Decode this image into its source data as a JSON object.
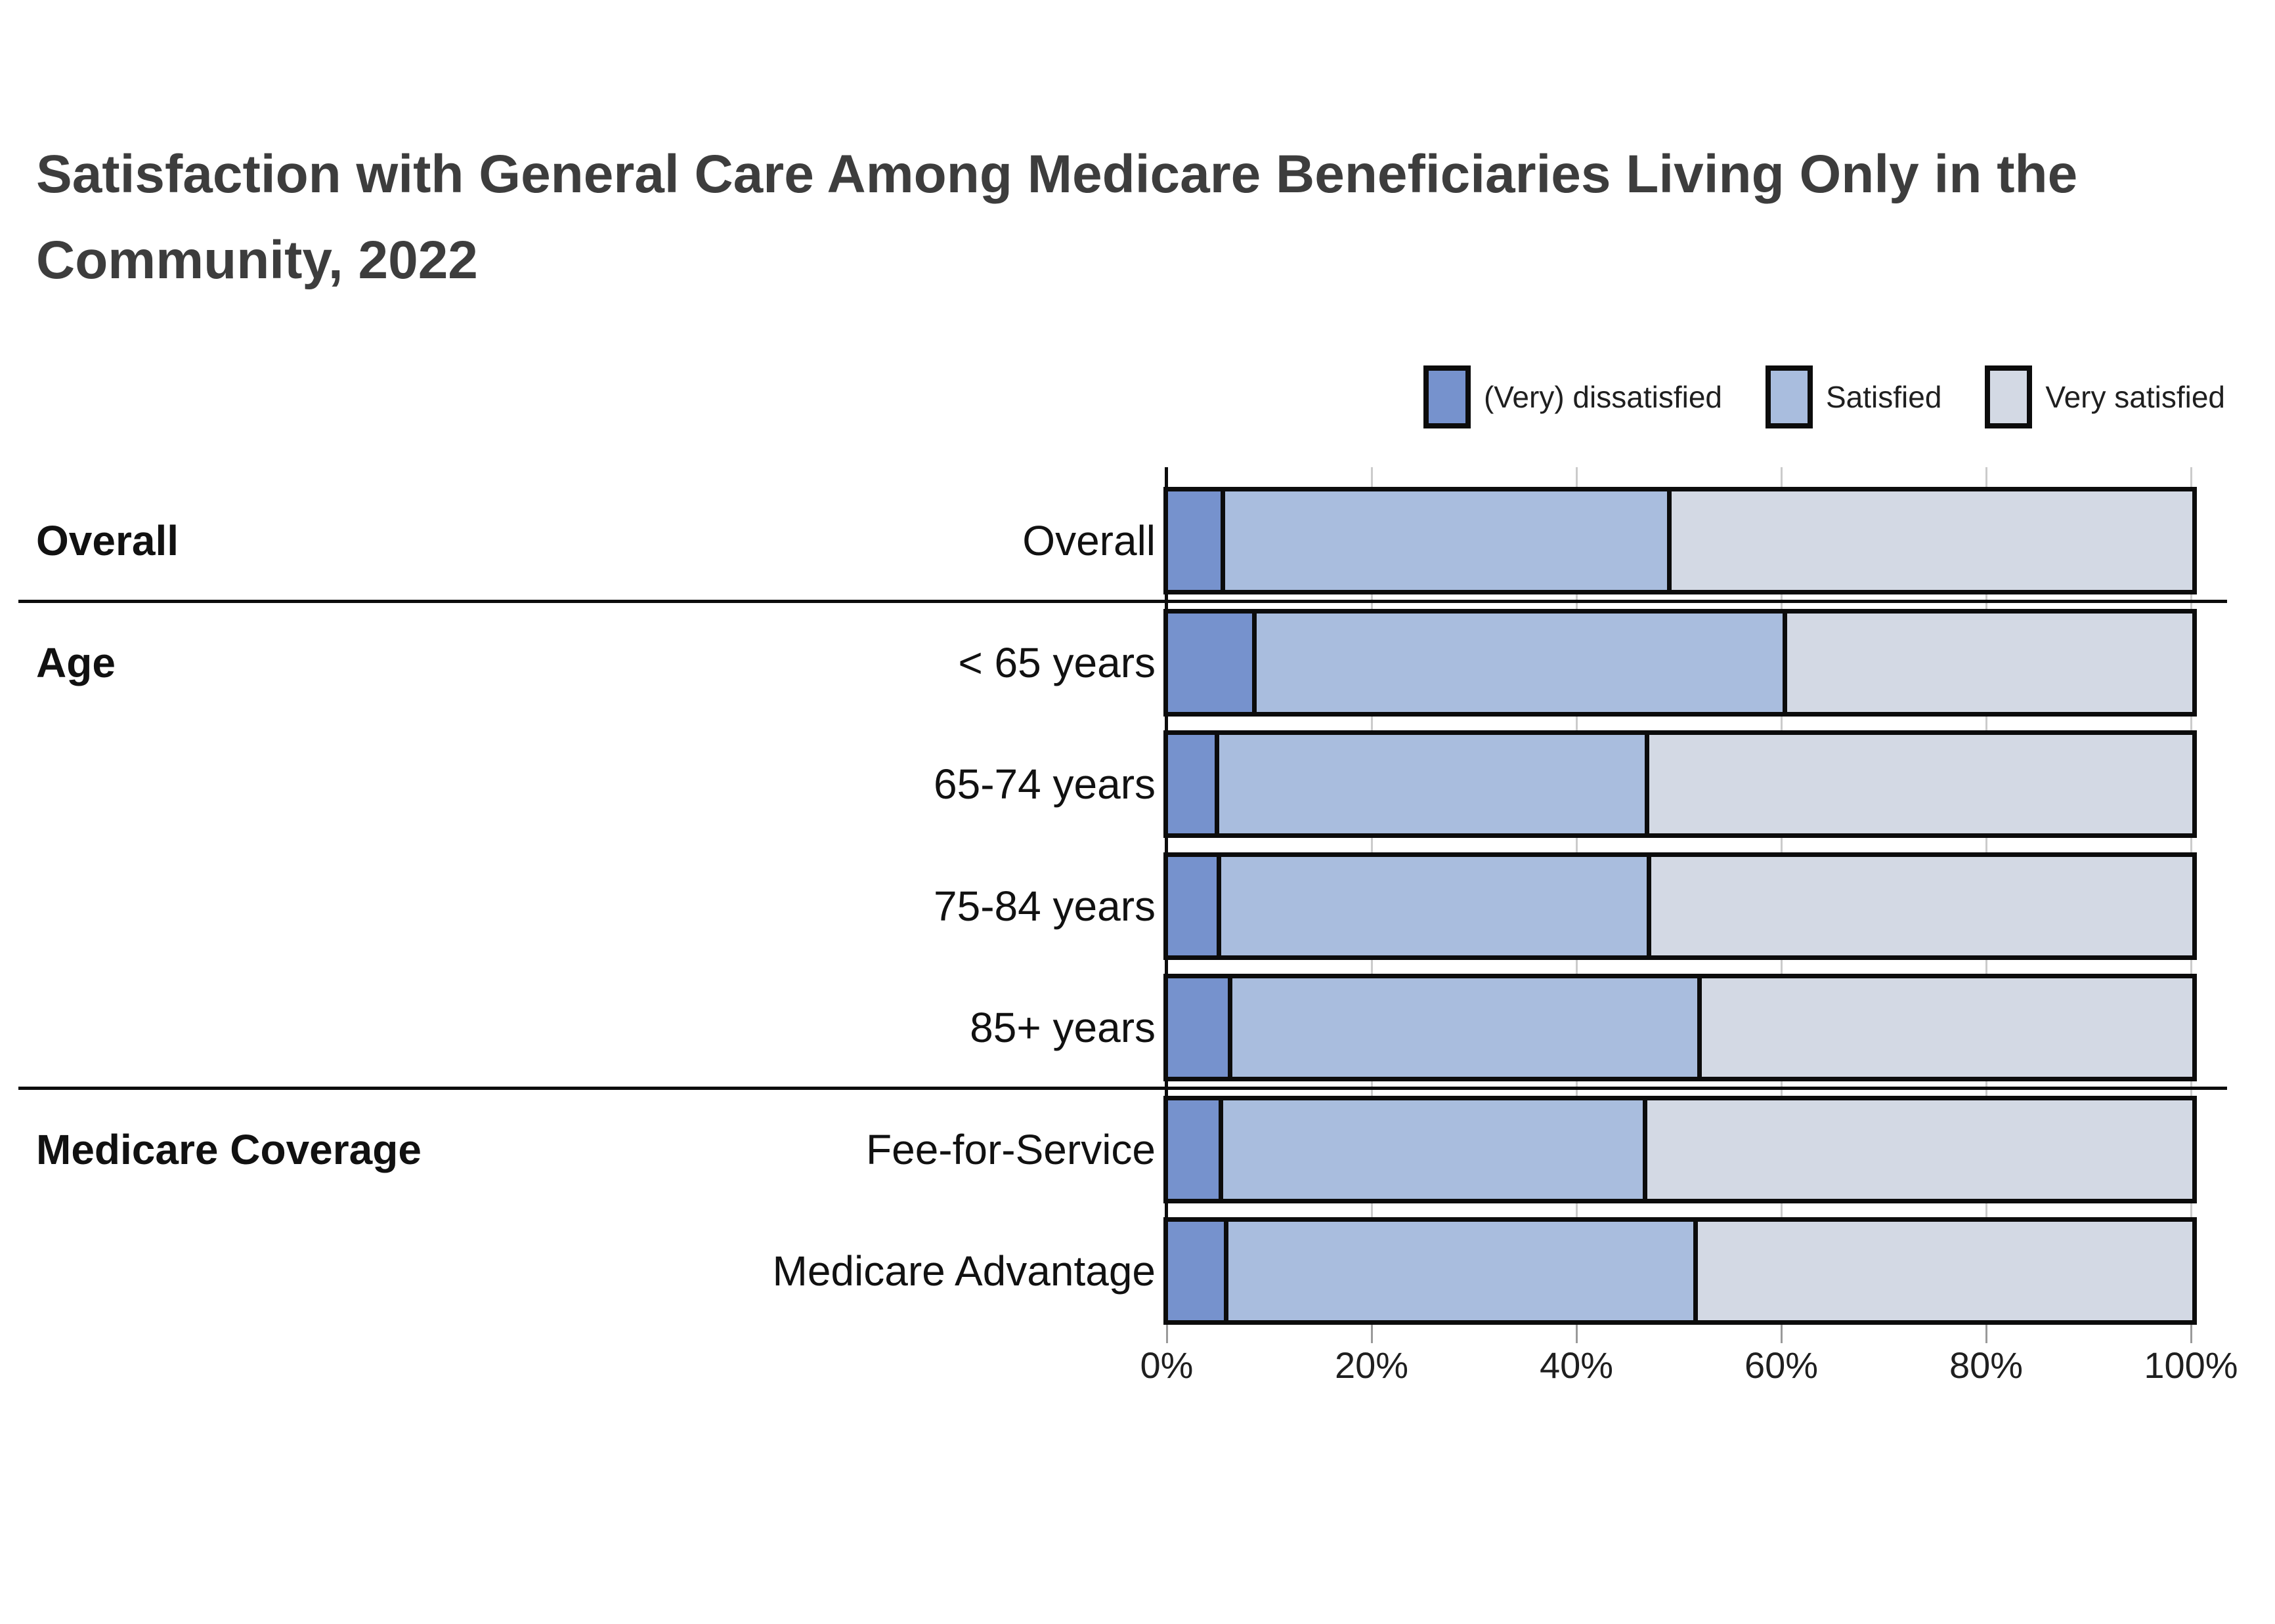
{
  "title": "Satisfaction with General Care Among Medicare Beneficiaries Living Only in the Community, 2022",
  "colors": {
    "dissatisfied": "#7692CD",
    "satisfied": "#A9BDDE",
    "very_satisfied": "#D3D9E4",
    "bar_border": "#0c0c0c",
    "gridline": "#cbcbcb",
    "title_text": "#3d3d3d"
  },
  "chart_data": {
    "type": "bar",
    "orientation": "horizontal",
    "stacked": true,
    "unit": "percent",
    "xlim": [
      0,
      100
    ],
    "grid": true,
    "legend_position": "top-right",
    "series_names": [
      "(Very) dissatisfied",
      "Satisfied",
      "Very satisfied"
    ],
    "legend": [
      {
        "label": "(Very) dissatisfied",
        "color": "#7692CD"
      },
      {
        "label": "Satisfied",
        "color": "#A9BDDE"
      },
      {
        "label": "Very satisfied",
        "color": "#D3D9E4"
      }
    ],
    "x_ticks": [
      {
        "label": "0%",
        "value": 0
      },
      {
        "label": "20%",
        "value": 20
      },
      {
        "label": "40%",
        "value": 40
      },
      {
        "label": "60%",
        "value": 60
      },
      {
        "label": "80%",
        "value": 80
      },
      {
        "label": "100%",
        "value": 100
      }
    ],
    "groups": [
      {
        "group": "Overall",
        "rows": [
          {
            "label": "Overall",
            "values": [
              5.2,
              43.5,
              51.3
            ]
          }
        ]
      },
      {
        "group": "Age",
        "rows": [
          {
            "label": "< 65 years",
            "values": [
              8.3,
              51.8,
              39.9
            ]
          },
          {
            "label": "65-74 years",
            "values": [
              4.6,
              41.9,
              53.5
            ]
          },
          {
            "label": "75-84 years",
            "values": [
              4.8,
              41.9,
              53.3
            ]
          },
          {
            "label": "85+ years",
            "values": [
              5.9,
              45.8,
              48.3
            ]
          }
        ]
      },
      {
        "group": "Medicare Coverage",
        "rows": [
          {
            "label": "Fee-for-Service",
            "values": [
              5.0,
              41.3,
              53.7
            ]
          },
          {
            "label": "Medicare Advantage",
            "values": [
              5.5,
              45.8,
              48.7
            ]
          }
        ]
      }
    ]
  },
  "layout_note": ""
}
